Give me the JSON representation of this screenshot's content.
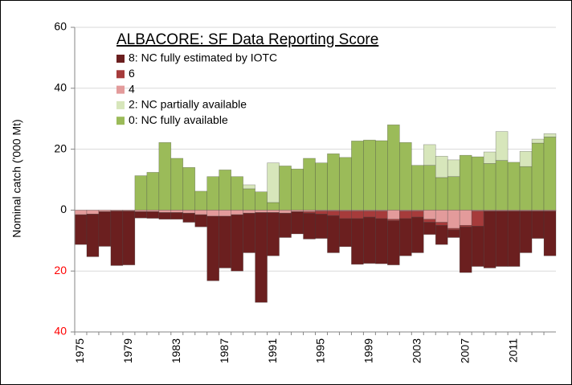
{
  "chart_data": {
    "type": "bar",
    "stacked": true,
    "title": "ALBACORE: SF Data Reporting Score",
    "y_label": "Nominal catch ('000 Mt)",
    "categories": [
      "1975",
      null,
      null,
      null,
      "1979",
      null,
      null,
      null,
      "1983",
      null,
      null,
      null,
      "1987",
      null,
      null,
      null,
      "1991",
      null,
      null,
      null,
      "1995",
      null,
      null,
      null,
      "1999",
      null,
      null,
      null,
      "2003",
      null,
      null,
      null,
      "2007",
      null,
      null,
      null,
      "2011",
      null,
      null,
      null
    ],
    "series": [
      {
        "name": "8: NC fully estimated by IOTC",
        "color": "#6b1f1f",
        "values": [
          -9.8,
          -14,
          -11.4,
          -17.9,
          -17.7,
          -2.1,
          -2.2,
          -2.2,
          -2.2,
          -3,
          -4,
          -21.2,
          -17,
          -18.5,
          -13,
          -29.5,
          -14.2,
          -8,
          -7.3,
          -8.5,
          -8,
          -12.2,
          -9.2,
          -15,
          -15.2,
          -14.8,
          -14.5,
          -12.2,
          -11.7,
          -4,
          -6.3,
          -2.5,
          -15,
          -13.2,
          -18.7,
          -18.2,
          -18.2,
          -13.7,
          -9,
          -14.7
        ]
      },
      {
        "name": "6",
        "color": "#a63b3b",
        "values": [
          0,
          0,
          0,
          0,
          0,
          0,
          0,
          0,
          0,
          0,
          0,
          0,
          0,
          0,
          0,
          0,
          0,
          0,
          0,
          -0.5,
          -1,
          -1.5,
          -2.5,
          -2.5,
          -2,
          -2.5,
          -0.5,
          -2.5,
          -2,
          -1,
          -1,
          -0.5,
          -0.5,
          -5,
          0,
          0,
          0,
          0,
          0,
          0
        ]
      },
      {
        "name": "4",
        "color": "#e39b9b",
        "values": [
          -1.5,
          -1.3,
          -0.5,
          -0.3,
          -0.3,
          -0.5,
          -0.5,
          -0.8,
          -0.8,
          -1,
          -1.5,
          -2,
          -2,
          -1.5,
          -1,
          -0.8,
          -0.8,
          -1,
          -0.5,
          -0.5,
          -0.3,
          -0.3,
          -0.3,
          -0.3,
          -0.3,
          -0.3,
          -3,
          -0.3,
          -0.3,
          -3,
          -4,
          -6,
          -5,
          -0.3,
          -0.3,
          -0.3,
          -0.3,
          -0.3,
          -0.3,
          -0.3
        ]
      },
      {
        "name": "2: NC partially available",
        "color": "#d7e6bb",
        "values": [
          0,
          0,
          0,
          0,
          0,
          0,
          0,
          0,
          0,
          0,
          0,
          0,
          0,
          0,
          1.3,
          0,
          13,
          0,
          0,
          0,
          0,
          0,
          0,
          0,
          0,
          0,
          0,
          0,
          0,
          6.8,
          7,
          5.5,
          0,
          0,
          3.8,
          9.5,
          0,
          5,
          1.3,
          1.1
        ]
      },
      {
        "name": "0: NC fully available",
        "color": "#9bbb59",
        "values": [
          0,
          0,
          0,
          0,
          0,
          11.3,
          12.4,
          22.2,
          17,
          14,
          6.2,
          11,
          13.2,
          11,
          7,
          6,
          2.5,
          14.5,
          13.5,
          17,
          15.5,
          18.5,
          17.3,
          22.7,
          23,
          22.8,
          28,
          22.2,
          14.7,
          14.7,
          10.7,
          11,
          18,
          17.5,
          15.3,
          16.3,
          15.7,
          14.3,
          22,
          24
        ]
      }
    ],
    "ylim": [
      -40,
      60
    ],
    "yticks": [
      {
        "value": -40,
        "label": "40"
      },
      {
        "value": -20,
        "label": "20"
      },
      0,
      20,
      40,
      60
    ],
    "negative_tick_color": "#ff0000",
    "grid": true
  }
}
